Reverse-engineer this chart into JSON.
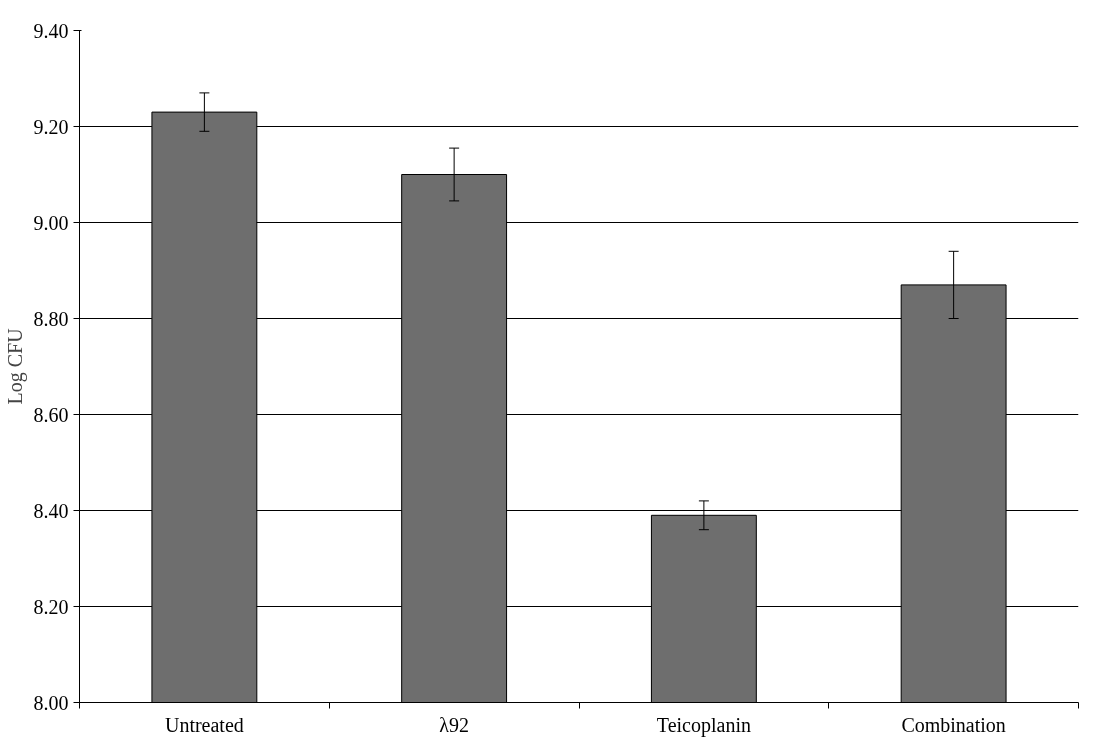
{
  "chart_data": {
    "type": "bar",
    "ylabel": "Log CFU",
    "categories": [
      "Untreated",
      "λ92",
      "Teicoplanin",
      "Combination"
    ],
    "values": [
      9.23,
      9.1,
      8.39,
      8.87
    ],
    "errors": [
      0.04,
      0.055,
      0.03,
      0.07
    ],
    "color": "#6e6e6e",
    "ylim": [
      8.0,
      9.4
    ],
    "yticks": [
      {
        "value": 8.0,
        "label": "8.00"
      },
      {
        "value": 8.2,
        "label": "8.20"
      },
      {
        "value": 8.4,
        "label": "8.40"
      },
      {
        "value": 8.6,
        "label": "8.60"
      },
      {
        "value": 8.8,
        "label": "8.80"
      },
      {
        "value": 9.0,
        "label": "9.00"
      },
      {
        "value": 9.2,
        "label": "9.20"
      },
      {
        "value": 9.4,
        "label": "9.40"
      }
    ],
    "grid": "y"
  }
}
